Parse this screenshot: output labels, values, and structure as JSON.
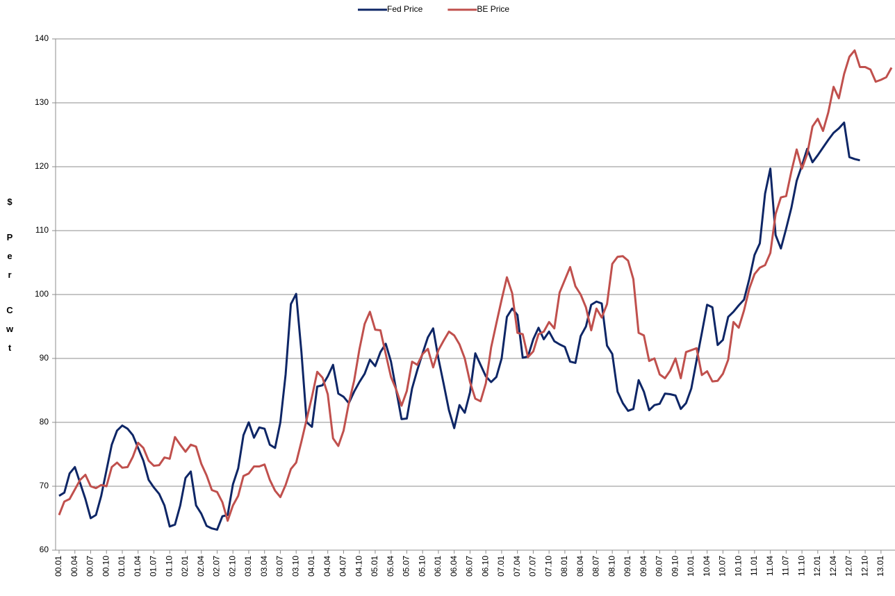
{
  "chart_data": {
    "type": "line",
    "y_axis_label": "$ Per Cwt",
    "categories": [
      "00.01",
      null,
      null,
      "00.04",
      null,
      null,
      "00.07",
      null,
      null,
      "00.10",
      null,
      null,
      "01.01",
      null,
      null,
      "01.04",
      null,
      null,
      "01.07",
      null,
      null,
      "01.10",
      null,
      null,
      "02.01",
      null,
      null,
      "02.04",
      null,
      null,
      "02.07",
      null,
      null,
      "02.10",
      null,
      null,
      "03.01",
      null,
      null,
      "03.04",
      null,
      null,
      "03.07",
      null,
      null,
      "03.10",
      null,
      null,
      "04.01",
      null,
      null,
      "04.04",
      null,
      null,
      "04.07",
      null,
      null,
      "04.10",
      null,
      null,
      "05.01",
      null,
      null,
      "05.04",
      null,
      null,
      "05.07",
      null,
      null,
      "05.10",
      null,
      null,
      "06.01",
      null,
      null,
      "06.04",
      null,
      null,
      "06.07",
      null,
      null,
      "06.10",
      null,
      null,
      "07.01",
      null,
      null,
      "07.04",
      null,
      null,
      "07.07",
      null,
      null,
      "07.10",
      null,
      null,
      "08.01",
      null,
      null,
      "08.04",
      null,
      null,
      "08.07",
      null,
      null,
      "08.10",
      null,
      null,
      "09.01",
      null,
      null,
      "09.04",
      null,
      null,
      "09.07",
      null,
      null,
      "09.10",
      null,
      null,
      "10.01",
      null,
      null,
      "10.04",
      null,
      null,
      "10.07",
      null,
      null,
      "10.10",
      null,
      null,
      "11.01",
      null,
      null,
      "11.04",
      null,
      null,
      "11.07",
      null,
      null,
      "11.10",
      null,
      null,
      "12.01",
      null,
      null,
      "12.04",
      null,
      null,
      "12.07",
      null,
      null,
      "12.10",
      null,
      null,
      "13.01",
      null,
      null
    ],
    "series": [
      {
        "name": "Fed Price",
        "color": "#0e2666",
        "values": [
          68.5,
          69,
          72,
          73,
          70.5,
          68,
          65,
          65.5,
          68.5,
          72.5,
          76.5,
          78.7,
          79.5,
          79,
          78,
          76,
          74,
          71,
          69.8,
          68.8,
          67,
          63.7,
          64,
          67,
          71.3,
          72.3,
          67,
          65.7,
          63.8,
          63.4,
          63.2,
          65.3,
          65.5,
          70.3,
          72.8,
          78,
          80,
          77.6,
          79.2,
          79,
          76.5,
          76,
          80,
          87.5,
          98.5,
          100.1,
          91,
          80,
          79.3,
          85.6,
          85.8,
          87.2,
          89,
          84.5,
          84,
          83,
          84.8,
          86.3,
          87.6,
          89.8,
          88.8,
          91,
          92.3,
          89.5,
          85,
          80.5,
          80.6,
          85.3,
          88.2,
          90.8,
          93.3,
          94.7,
          90,
          86,
          81.9,
          79.1,
          82.7,
          81.5,
          84.7,
          90.8,
          89,
          87.2,
          86.3,
          87.1,
          90,
          96.5,
          97.8,
          96.8,
          90.1,
          90.3,
          93,
          94.8,
          93,
          94.2,
          92.7,
          92.2,
          91.8,
          89.5,
          89.3,
          93.5,
          95,
          98.4,
          98.9,
          98.6,
          92,
          90.7,
          84.8,
          83,
          81.8,
          82.1,
          86.6,
          84.8,
          81.9,
          82.7,
          82.9,
          84.5,
          84.4,
          84.2,
          82.1,
          83,
          85.3,
          89.7,
          94,
          98.4,
          98,
          92.1,
          92.9,
          96.5,
          97.3,
          98.3,
          99.2,
          102.4,
          106.2,
          108,
          115.8,
          119.7,
          109.3,
          107.2,
          110.3,
          113.6,
          117.8,
          120.2,
          122.8,
          120.7,
          121.8,
          123,
          124.2,
          125.3,
          126,
          126.9,
          121.5,
          121.2,
          121,
          null,
          null,
          null,
          null,
          null,
          null
        ]
      },
      {
        "name": "BE Price",
        "color": "#c0504d",
        "values": [
          65.5,
          67.6,
          68,
          69.5,
          71,
          71.8,
          70,
          69.7,
          70.2,
          70,
          73,
          73.7,
          72.9,
          73,
          74.6,
          76.8,
          76,
          74,
          73.2,
          73.3,
          74.5,
          74.3,
          77.7,
          76.5,
          75.4,
          76.5,
          76.2,
          73.5,
          71.7,
          69.4,
          69.1,
          67.5,
          64.6,
          67,
          68.5,
          71.6,
          72,
          73.1,
          73.1,
          73.4,
          71,
          69.3,
          68.3,
          70.2,
          72.7,
          73.7,
          77,
          80.5,
          84,
          87.9,
          87,
          84.4,
          77.5,
          76.3,
          78.7,
          83,
          86.5,
          91.4,
          95.4,
          97.3,
          94.5,
          94.4,
          90.7,
          87.1,
          85.1,
          82.6,
          84.9,
          89.5,
          89,
          90.7,
          91.5,
          88.6,
          91.3,
          92.8,
          94.2,
          93.6,
          92.2,
          90,
          86.3,
          83.7,
          83.3,
          86.1,
          91.7,
          95.5,
          99.2,
          102.7,
          100.2,
          94,
          93.8,
          90.2,
          91.1,
          93.8,
          94.2,
          95.7,
          94.7,
          100.3,
          102.3,
          104.3,
          101.3,
          100,
          98,
          94.4,
          97.8,
          96.4,
          98.5,
          104.8,
          105.9,
          106,
          105.3,
          102.4,
          94,
          93.6,
          89.6,
          90,
          87.5,
          86.9,
          88.1,
          90,
          86.9,
          91,
          91.3,
          91.6,
          87.4,
          88,
          86.4,
          86.5,
          87.6,
          89.8,
          95.7,
          94.8,
          97.5,
          100.9,
          103.2,
          104.2,
          104.6,
          106.5,
          112.6,
          115.2,
          115.4,
          119.3,
          122.7,
          119.7,
          122,
          126.3,
          127.5,
          125.6,
          128.5,
          132.5,
          130.7,
          134.5,
          137.2,
          138.2,
          135.6,
          135.6,
          135.2,
          133.3,
          133.6,
          134,
          135.5
        ]
      }
    ],
    "ylim": [
      60,
      140
    ],
    "yticks": [
      60,
      70,
      80,
      90,
      100,
      110,
      120,
      130,
      140
    ],
    "grid": true,
    "legend": "top"
  }
}
